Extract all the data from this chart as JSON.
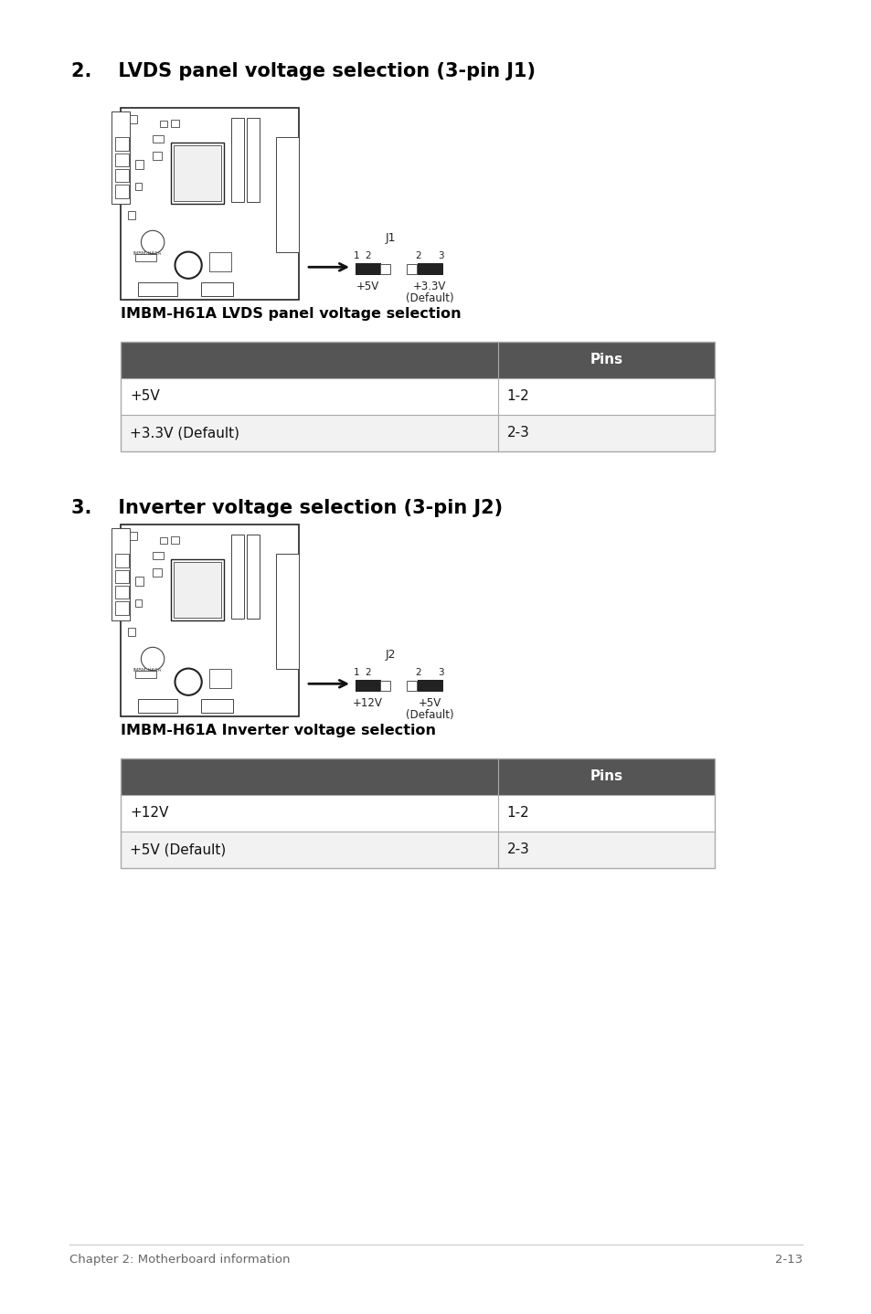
{
  "bg_color": "#ffffff",
  "section2_title": "2.    LVDS panel voltage selection (3-pin J1)",
  "section2_caption": "IMBM-H61A LVDS panel voltage selection",
  "section3_title": "3.    Inverter voltage selection (3-pin J2)",
  "section3_caption": "IMBM-H61A Inverter voltage selection",
  "footer_left": "Chapter 2: Motherboard information",
  "footer_right": "2-13",
  "table1_rows": [
    [
      "+5V",
      "1-2"
    ],
    [
      "+3.3V (Default)",
      "2-3"
    ]
  ],
  "table2_rows": [
    [
      "+12V",
      "1-2"
    ],
    [
      "+5V (Default)",
      "2-3"
    ]
  ],
  "header_bg": "#555555",
  "header_fg": "#ffffff",
  "table_border": "#aaaaaa",
  "title_color": "#000000",
  "caption_color": "#000000",
  "footer_color": "#666666",
  "mb_edge": "#222222",
  "mb_inner": "#444444"
}
